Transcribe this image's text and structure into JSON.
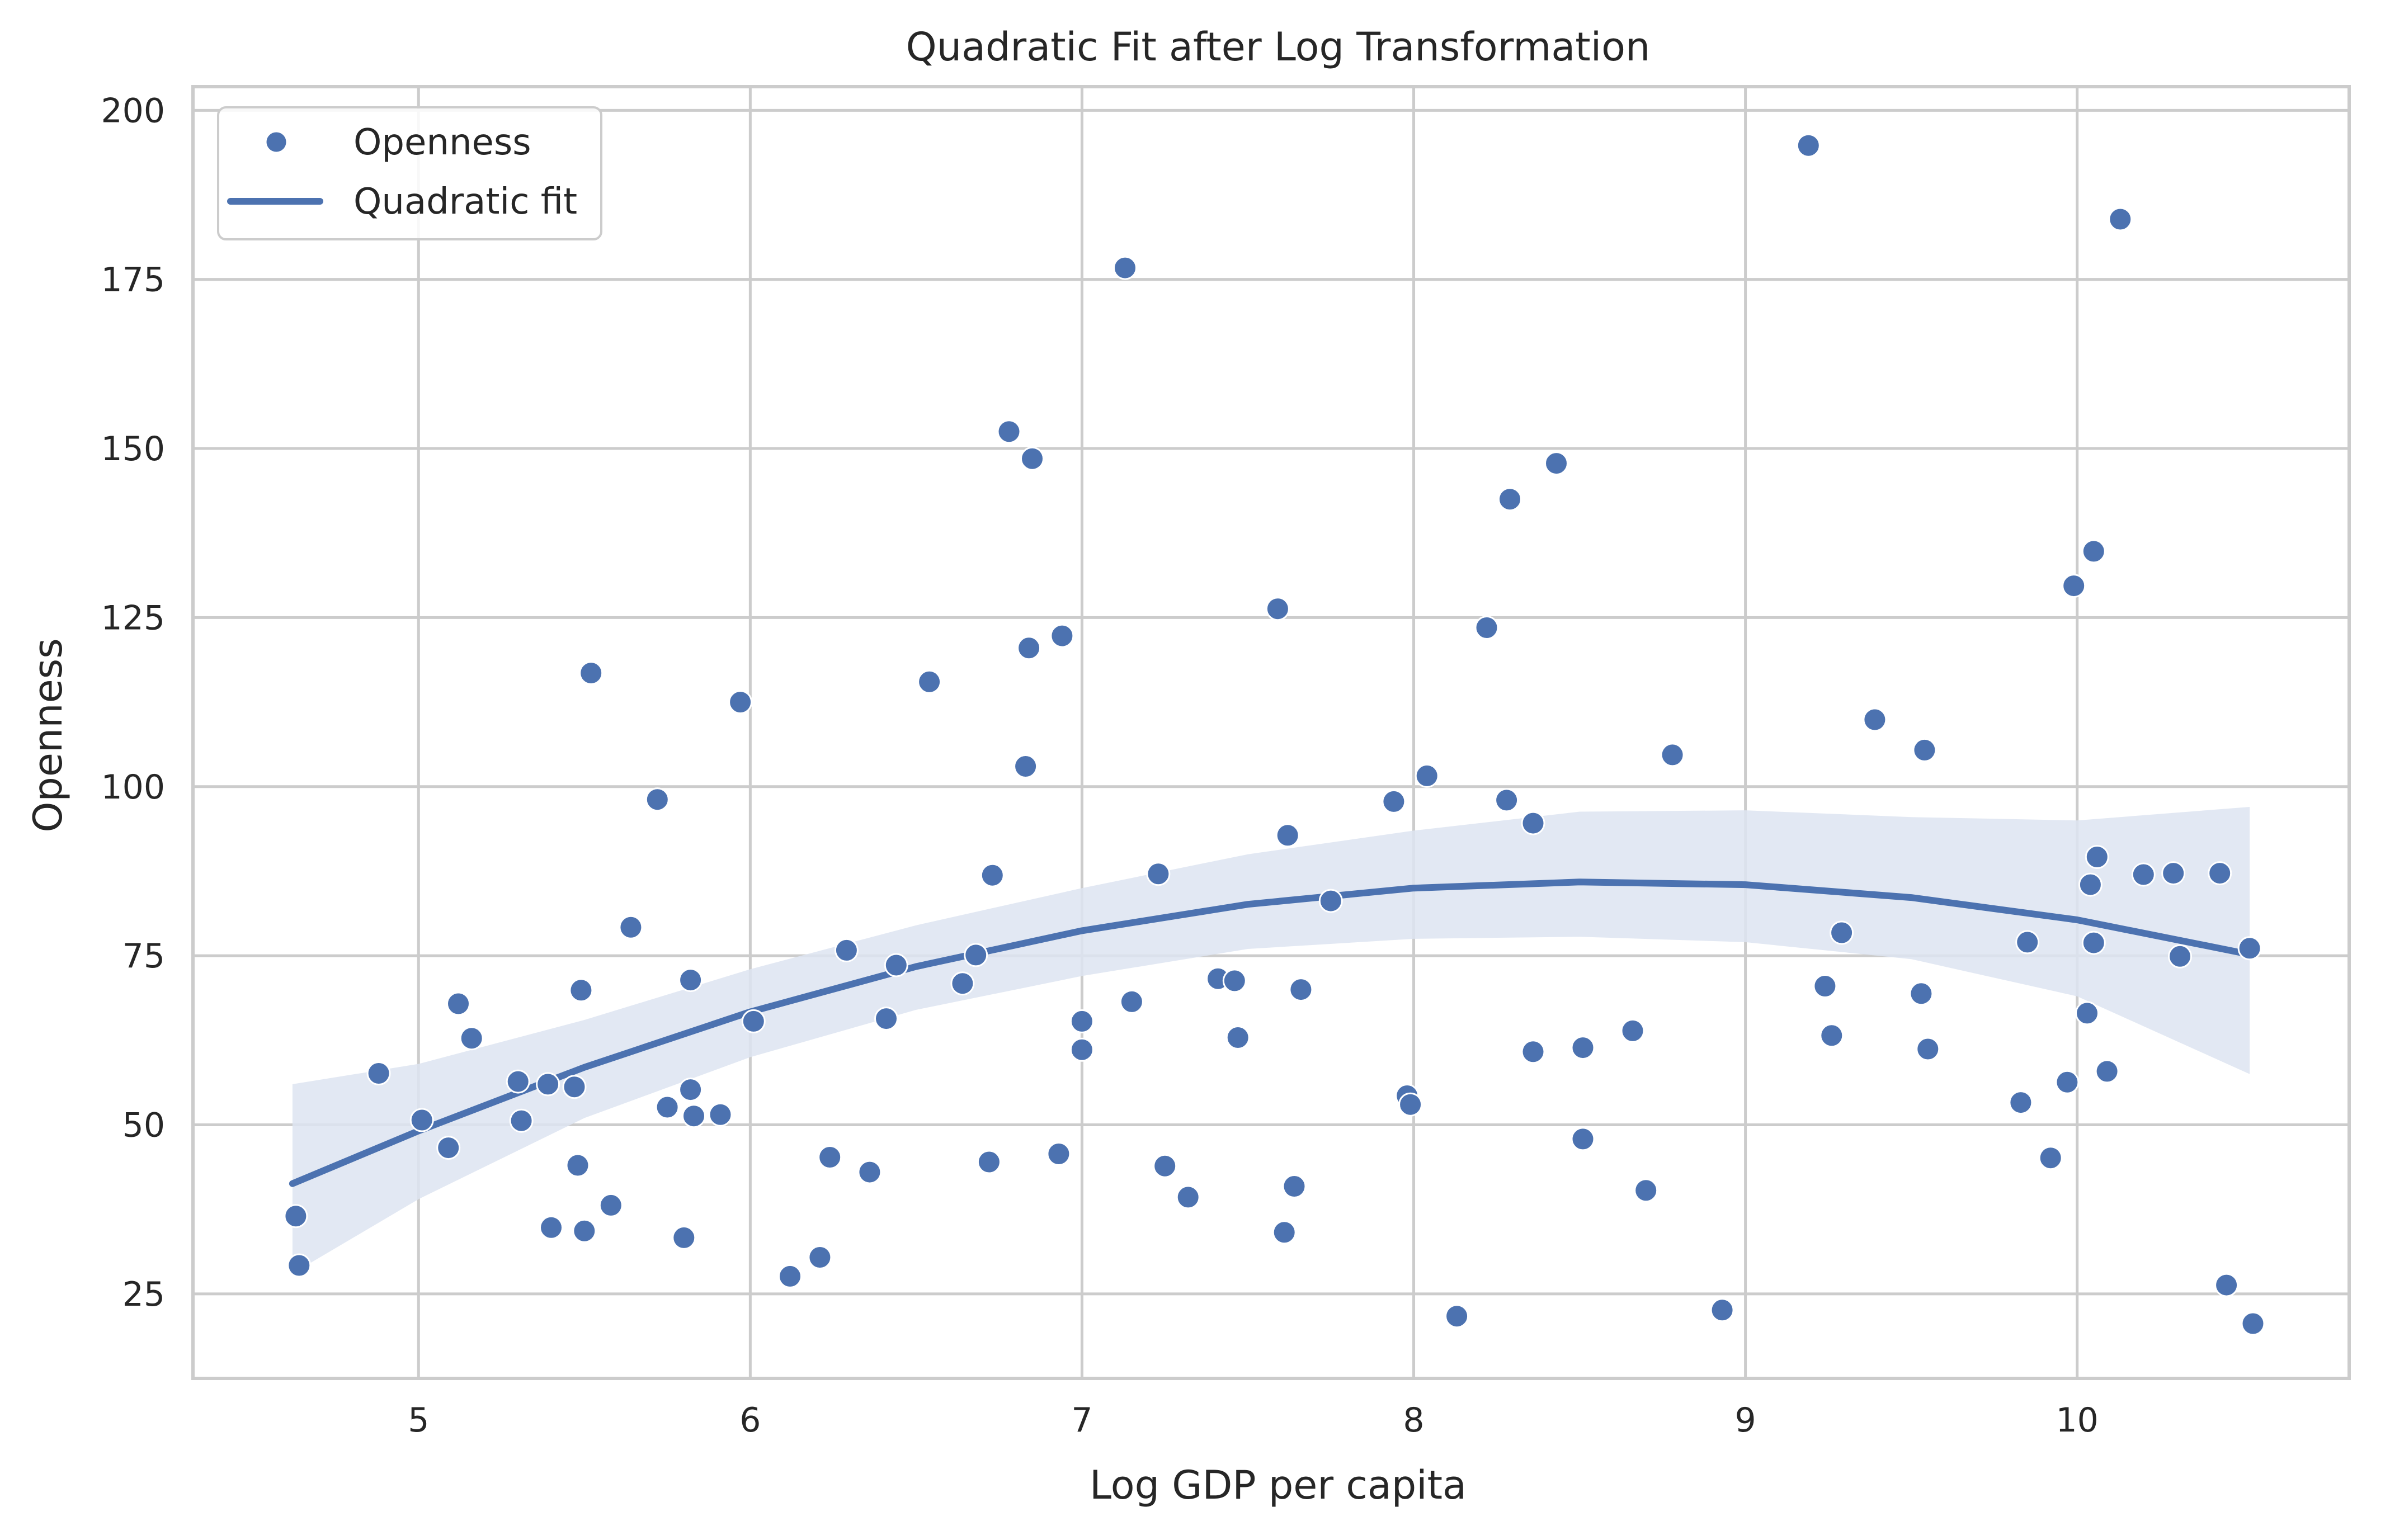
{
  "chart_data": {
    "type": "scatter",
    "title": "Quadratic Fit after Log Transformation",
    "xlabel": "Log GDP per capita",
    "ylabel": "Openness",
    "xlim": [
      4.32,
      10.82
    ],
    "ylim": [
      12.5,
      203.5
    ],
    "xticks": [
      5,
      6,
      7,
      8,
      9,
      10
    ],
    "yticks": [
      25,
      50,
      75,
      100,
      125,
      150,
      175,
      200
    ],
    "grid": true,
    "legend_position": "top-left",
    "colors": {
      "points": "#4c72b0",
      "line": "#4c72b0",
      "band": "#dde4f1",
      "grid": "#cccccc",
      "frame": "#cccccc"
    },
    "series": [
      {
        "name": "Openness",
        "kind": "scatter",
        "points": [
          [
            4.63,
            36.5
          ],
          [
            4.64,
            29.2
          ],
          [
            4.88,
            57.6
          ],
          [
            5.01,
            50.7
          ],
          [
            5.09,
            46.6
          ],
          [
            5.12,
            67.9
          ],
          [
            5.16,
            62.8
          ],
          [
            5.3,
            56.4
          ],
          [
            5.31,
            50.6
          ],
          [
            5.39,
            56.0
          ],
          [
            5.4,
            34.8
          ],
          [
            5.47,
            55.6
          ],
          [
            5.48,
            44.0
          ],
          [
            5.49,
            69.9
          ],
          [
            5.5,
            34.3
          ],
          [
            5.52,
            116.8
          ],
          [
            5.58,
            38.1
          ],
          [
            5.64,
            79.2
          ],
          [
            5.72,
            98.1
          ],
          [
            5.75,
            52.6
          ],
          [
            5.8,
            33.3
          ],
          [
            5.82,
            71.4
          ],
          [
            5.82,
            55.2
          ],
          [
            5.83,
            51.3
          ],
          [
            5.91,
            51.5
          ],
          [
            5.97,
            112.5
          ],
          [
            6.01,
            65.3
          ],
          [
            6.12,
            27.6
          ],
          [
            6.21,
            30.4
          ],
          [
            6.24,
            45.2
          ],
          [
            6.29,
            75.8
          ],
          [
            6.36,
            43.0
          ],
          [
            6.41,
            65.7
          ],
          [
            6.44,
            73.6
          ],
          [
            6.54,
            115.5
          ],
          [
            6.64,
            70.9
          ],
          [
            6.68,
            75.1
          ],
          [
            6.72,
            44.5
          ],
          [
            6.73,
            86.9
          ],
          [
            6.78,
            152.5
          ],
          [
            6.83,
            103.0
          ],
          [
            6.84,
            120.5
          ],
          [
            6.85,
            148.5
          ],
          [
            6.93,
            45.7
          ],
          [
            6.94,
            122.3
          ],
          [
            7.0,
            61.1
          ],
          [
            7.0,
            65.3
          ],
          [
            7.13,
            176.7
          ],
          [
            7.15,
            68.2
          ],
          [
            7.23,
            87.1
          ],
          [
            7.25,
            43.9
          ],
          [
            7.32,
            39.3
          ],
          [
            7.41,
            71.6
          ],
          [
            7.46,
            71.3
          ],
          [
            7.47,
            62.9
          ],
          [
            7.59,
            126.3
          ],
          [
            7.61,
            34.1
          ],
          [
            7.62,
            92.8
          ],
          [
            7.64,
            40.9
          ],
          [
            7.66,
            70.0
          ],
          [
            7.75,
            83.1
          ],
          [
            7.94,
            97.8
          ],
          [
            7.98,
            54.3
          ],
          [
            7.99,
            53.0
          ],
          [
            8.04,
            101.6
          ],
          [
            8.13,
            21.7
          ],
          [
            8.22,
            123.5
          ],
          [
            8.28,
            98.0
          ],
          [
            8.29,
            142.5
          ],
          [
            8.36,
            60.8
          ],
          [
            8.36,
            94.6
          ],
          [
            8.43,
            147.8
          ],
          [
            8.51,
            61.4
          ],
          [
            8.51,
            47.9
          ],
          [
            8.66,
            63.9
          ],
          [
            8.7,
            40.3
          ],
          [
            8.78,
            104.7
          ],
          [
            8.93,
            22.6
          ],
          [
            9.19,
            194.8
          ],
          [
            9.24,
            70.5
          ],
          [
            9.26,
            63.2
          ],
          [
            9.29,
            78.4
          ],
          [
            9.39,
            109.9
          ],
          [
            9.53,
            69.4
          ],
          [
            9.54,
            105.4
          ],
          [
            9.55,
            61.2
          ],
          [
            9.83,
            53.3
          ],
          [
            9.85,
            77.0
          ],
          [
            9.92,
            45.1
          ],
          [
            9.97,
            56.3
          ],
          [
            9.99,
            129.7
          ],
          [
            10.03,
            66.5
          ],
          [
            10.04,
            85.5
          ],
          [
            10.05,
            134.8
          ],
          [
            10.05,
            76.9
          ],
          [
            10.06,
            89.6
          ],
          [
            10.09,
            57.9
          ],
          [
            10.13,
            183.9
          ],
          [
            10.2,
            87.0
          ],
          [
            10.29,
            87.2
          ],
          [
            10.31,
            74.9
          ],
          [
            10.43,
            87.2
          ],
          [
            10.45,
            26.3
          ],
          [
            10.52,
            76.1
          ],
          [
            10.53,
            20.6
          ]
        ]
      },
      {
        "name": "Quadratic fit",
        "kind": "line",
        "x": [
          4.62,
          5.0,
          5.5,
          6.0,
          6.5,
          7.0,
          7.5,
          8.0,
          8.5,
          9.0,
          9.5,
          10.0,
          10.52
        ],
        "values": [
          41.3,
          49.1,
          58.5,
          66.7,
          73.4,
          78.7,
          82.6,
          85.0,
          85.9,
          85.5,
          83.6,
          80.3,
          75.2
        ]
      }
    ],
    "confidence_band": {
      "x": [
        4.62,
        5.0,
        5.5,
        6.0,
        6.5,
        7.0,
        7.5,
        8.0,
        8.5,
        9.0,
        9.5,
        10.0,
        10.52
      ],
      "lower": [
        28.0,
        39.0,
        51.0,
        60.0,
        67.0,
        72.0,
        76.0,
        77.5,
        77.8,
        77.0,
        74.5,
        69.0,
        57.5
      ],
      "upper": [
        56.0,
        59.0,
        65.5,
        73.0,
        79.5,
        85.0,
        90.0,
        93.5,
        96.3,
        96.5,
        95.5,
        95.0,
        97.0
      ]
    }
  }
}
